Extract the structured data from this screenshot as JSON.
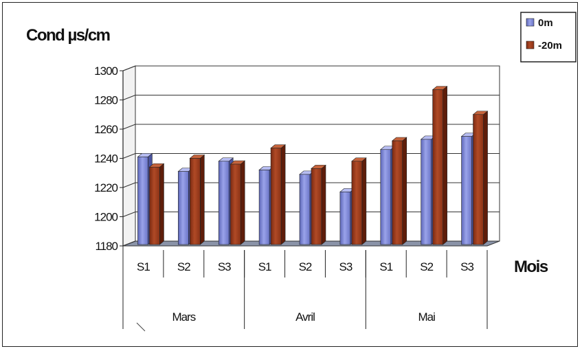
{
  "chart_data": {
    "type": "bar",
    "title": "",
    "ylabel": "Cond µs/cm",
    "xlabel": "Mois",
    "ylim": [
      1180,
      1300
    ],
    "yticks": [
      1180,
      1200,
      1220,
      1240,
      1260,
      1280,
      1300
    ],
    "categories": [
      "S1",
      "S2",
      "S3",
      "S1",
      "S2",
      "S3",
      "S1",
      "S2",
      "S3"
    ],
    "groups": [
      {
        "label": "Mars",
        "span": 3
      },
      {
        "label": "Avril",
        "span": 3
      },
      {
        "label": "Mai",
        "span": 3
      }
    ],
    "series": [
      {
        "name": "0m",
        "color": "#7b86d6",
        "values": [
          1241,
          1231,
          1238,
          1232,
          1229,
          1217,
          1246,
          1253,
          1255
        ]
      },
      {
        "name": "-20m",
        "color": "#9c3a1c",
        "values": [
          1234,
          1240,
          1236,
          1247,
          1233,
          1238,
          1252,
          1287,
          1270
        ]
      }
    ],
    "grid": true,
    "legend_position": "top-right",
    "style": "3d-clustered-column"
  }
}
